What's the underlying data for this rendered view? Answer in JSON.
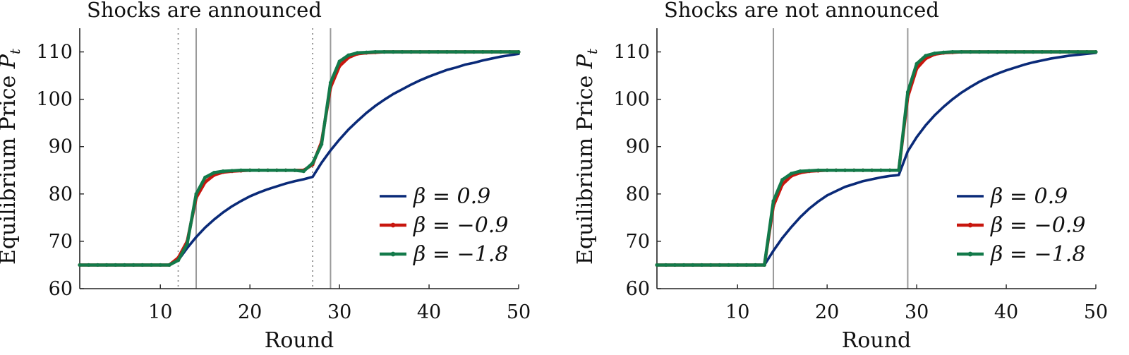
{
  "chart_data": [
    {
      "type": "line",
      "title": "Shocks are announced",
      "xlabel": "Round",
      "ylabel": "Equilibrium Price P_t",
      "ylabel_main": "Equilibrium Price ",
      "ylabel_sym": "P",
      "ylabel_sub": "t",
      "xlim": [
        1,
        50
      ],
      "ylim": [
        60,
        115
      ],
      "xticks": [
        10,
        20,
        30,
        40,
        50
      ],
      "yticks": [
        60,
        70,
        80,
        90,
        100,
        110
      ],
      "grid": false,
      "legend_position": "right",
      "vlines_solid": [
        14,
        29
      ],
      "vlines_dotted": [
        12,
        27
      ],
      "series": [
        {
          "name": "β = 0.9",
          "color": "#0a2a78",
          "marker": false,
          "x": [
            1,
            2,
            3,
            4,
            5,
            6,
            7,
            8,
            9,
            10,
            11,
            12,
            13,
            14,
            15,
            16,
            17,
            18,
            19,
            20,
            21,
            22,
            23,
            24,
            25,
            26,
            27,
            28,
            29,
            30,
            31,
            32,
            33,
            34,
            35,
            36,
            37,
            38,
            39,
            40,
            41,
            42,
            43,
            44,
            45,
            46,
            47,
            48,
            49,
            50
          ],
          "y": [
            65,
            65,
            65,
            65,
            65,
            65,
            65,
            65,
            65,
            65,
            65,
            66,
            68.6,
            70.9,
            72.9,
            74.6,
            76.1,
            77.4,
            78.5,
            79.5,
            80.3,
            81,
            81.6,
            82.2,
            82.7,
            83.1,
            83.6,
            86.6,
            89.2,
            91.5,
            93.6,
            95.4,
            97.1,
            98.6,
            99.9,
            101.1,
            102.1,
            103.1,
            104,
            104.8,
            105.5,
            106.2,
            106.7,
            107.3,
            107.7,
            108.2,
            108.6,
            109,
            109.3,
            109.6
          ]
        },
        {
          "name": "β = −0.9",
          "color": "#c8160e",
          "marker": true,
          "x": [
            1,
            2,
            3,
            4,
            5,
            6,
            7,
            8,
            9,
            10,
            11,
            12,
            13,
            14,
            15,
            16,
            17,
            18,
            19,
            20,
            21,
            22,
            23,
            24,
            25,
            26,
            27,
            28,
            29,
            30,
            31,
            32,
            33,
            34,
            35,
            36,
            37,
            38,
            39,
            40,
            41,
            42,
            43,
            44,
            45,
            46,
            47,
            48,
            49,
            50
          ],
          "y": [
            65,
            65,
            65,
            65,
            65,
            65,
            65,
            65,
            65,
            65,
            65,
            66.5,
            70,
            79.2,
            82.5,
            84,
            84.6,
            84.8,
            84.9,
            85,
            85,
            85,
            85,
            85,
            85,
            85,
            86.2,
            91,
            102.5,
            107,
            108.8,
            109.6,
            109.8,
            109.9,
            110,
            110,
            110,
            110,
            110,
            110,
            110,
            110,
            110,
            110,
            110,
            110,
            110,
            110,
            110,
            110
          ]
        },
        {
          "name": "β = −1.8",
          "color": "#137a4a",
          "marker": true,
          "x": [
            1,
            2,
            3,
            4,
            5,
            6,
            7,
            8,
            9,
            10,
            11,
            12,
            13,
            14,
            15,
            16,
            17,
            18,
            19,
            20,
            21,
            22,
            23,
            24,
            25,
            26,
            27,
            28,
            29,
            30,
            31,
            32,
            33,
            34,
            35,
            36,
            37,
            38,
            39,
            40,
            41,
            42,
            43,
            44,
            45,
            46,
            47,
            48,
            49,
            50
          ],
          "y": [
            65,
            65,
            65,
            65,
            65,
            65,
            65,
            65,
            65,
            65,
            65,
            66,
            69.5,
            80,
            83.5,
            84.5,
            84.8,
            84.9,
            85,
            85,
            85,
            85,
            85,
            85,
            85,
            84.8,
            86.5,
            90.5,
            103.5,
            108,
            109.3,
            109.8,
            109.9,
            110,
            110,
            110,
            110,
            110,
            110,
            110,
            110,
            110,
            110,
            110,
            110,
            110,
            110,
            110,
            110,
            110
          ]
        }
      ]
    },
    {
      "type": "line",
      "title": "Shocks are not announced",
      "xlabel": "Round",
      "ylabel": "Equilibrium Price P_t",
      "ylabel_main": "Equilibrium Price ",
      "ylabel_sym": "P",
      "ylabel_sub": "t",
      "xlim": [
        1,
        50
      ],
      "ylim": [
        60,
        115
      ],
      "xticks": [
        10,
        20,
        30,
        40,
        50
      ],
      "yticks": [
        60,
        70,
        80,
        90,
        100,
        110
      ],
      "grid": false,
      "legend_position": "right",
      "vlines_solid": [
        14,
        29
      ],
      "vlines_dotted": [],
      "series": [
        {
          "name": "β = 0.9",
          "color": "#0a2a78",
          "marker": false,
          "x": [
            1,
            2,
            3,
            4,
            5,
            6,
            7,
            8,
            9,
            10,
            11,
            12,
            13,
            14,
            15,
            16,
            17,
            18,
            19,
            20,
            21,
            22,
            23,
            24,
            25,
            26,
            27,
            28,
            29,
            30,
            31,
            32,
            33,
            34,
            35,
            36,
            37,
            38,
            39,
            40,
            41,
            42,
            43,
            44,
            45,
            46,
            47,
            48,
            49,
            50
          ],
          "y": [
            65,
            65,
            65,
            65,
            65,
            65,
            65,
            65,
            65,
            65,
            65,
            65,
            65,
            68,
            70.7,
            73,
            75.1,
            76.9,
            78.4,
            79.7,
            80.6,
            81.5,
            82.1,
            82.7,
            83.1,
            83.5,
            83.8,
            84,
            89,
            92,
            94.5,
            96.6,
            98.4,
            100,
            101.4,
            102.6,
            103.7,
            104.6,
            105.4,
            106.1,
            106.7,
            107.3,
            107.8,
            108.2,
            108.6,
            108.9,
            109.2,
            109.4,
            109.6,
            109.8
          ]
        },
        {
          "name": "β = −0.9",
          "color": "#c8160e",
          "marker": true,
          "x": [
            1,
            2,
            3,
            4,
            5,
            6,
            7,
            8,
            9,
            10,
            11,
            12,
            13,
            14,
            15,
            16,
            17,
            18,
            19,
            20,
            21,
            22,
            23,
            24,
            25,
            26,
            27,
            28,
            29,
            30,
            31,
            32,
            33,
            34,
            35,
            36,
            37,
            38,
            39,
            40,
            41,
            42,
            43,
            44,
            45,
            46,
            47,
            48,
            49,
            50
          ],
          "y": [
            65,
            65,
            65,
            65,
            65,
            65,
            65,
            65,
            65,
            65,
            65,
            65,
            65,
            77.5,
            82,
            83.8,
            84.5,
            84.8,
            84.9,
            85,
            85,
            85,
            85,
            85,
            85,
            85,
            85,
            85,
            100.5,
            106.5,
            108.6,
            109.5,
            109.8,
            109.9,
            110,
            110,
            110,
            110,
            110,
            110,
            110,
            110,
            110,
            110,
            110,
            110,
            110,
            110,
            110,
            110
          ]
        },
        {
          "name": "β = −1.8",
          "color": "#137a4a",
          "marker": true,
          "x": [
            1,
            2,
            3,
            4,
            5,
            6,
            7,
            8,
            9,
            10,
            11,
            12,
            13,
            14,
            15,
            16,
            17,
            18,
            19,
            20,
            21,
            22,
            23,
            24,
            25,
            26,
            27,
            28,
            29,
            30,
            31,
            32,
            33,
            34,
            35,
            36,
            37,
            38,
            39,
            40,
            41,
            42,
            43,
            44,
            45,
            46,
            47,
            48,
            49,
            50
          ],
          "y": [
            65,
            65,
            65,
            65,
            65,
            65,
            65,
            65,
            65,
            65,
            65,
            65,
            65,
            78.5,
            83,
            84.3,
            84.8,
            84.9,
            85,
            85,
            85,
            85,
            85,
            85,
            85,
            85,
            85,
            85,
            101.5,
            107.5,
            109.2,
            109.7,
            109.9,
            110,
            110,
            110,
            110,
            110,
            110,
            110,
            110,
            110,
            110,
            110,
            110,
            110,
            110,
            110,
            110,
            110
          ]
        }
      ]
    }
  ]
}
